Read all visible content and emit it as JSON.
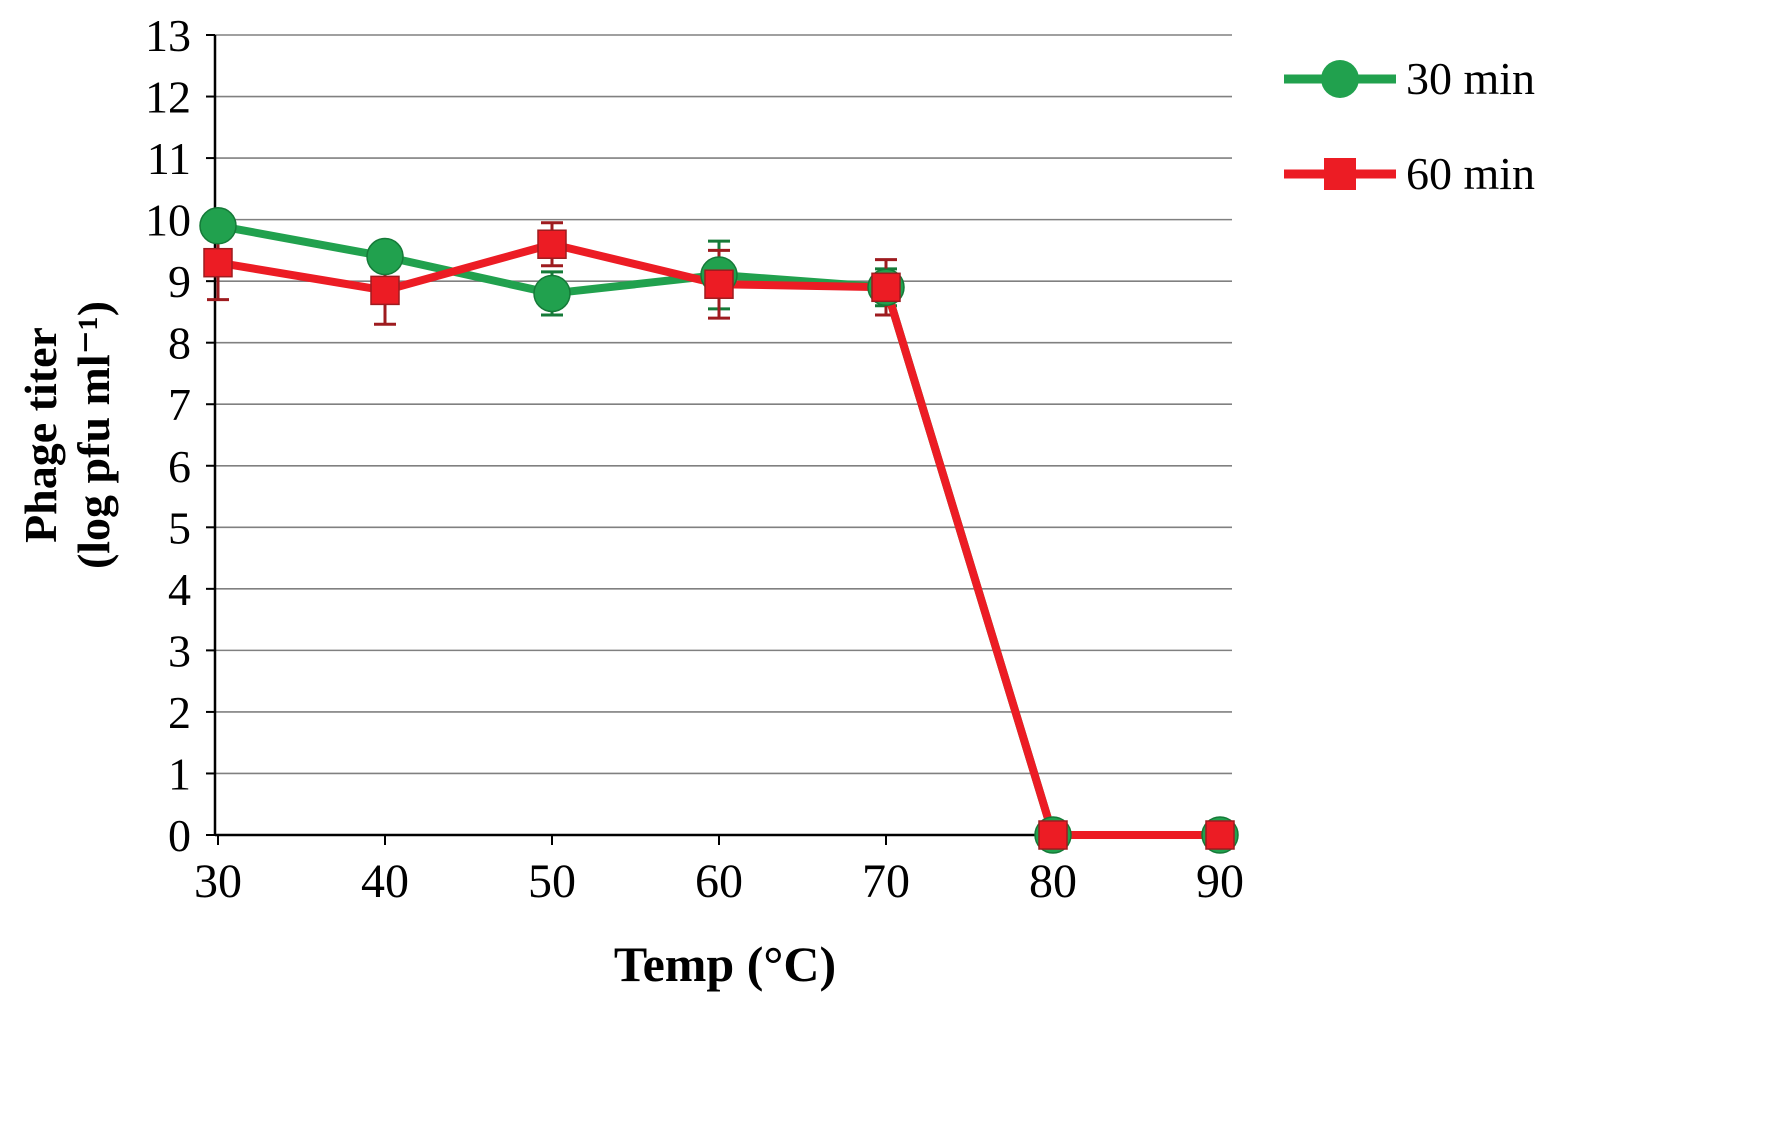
{
  "chart_data": {
    "type": "line",
    "title": "",
    "xlabel": "Temp (°C)",
    "ylabel": "Phage titer (log pfu ml⁻¹)",
    "ylabel_lines": [
      "Phage titer",
      "(log pfu ml⁻¹)"
    ],
    "x_ticks": [
      "30",
      "40",
      "50",
      "60",
      "70",
      "80",
      "90"
    ],
    "categories": [
      30,
      40,
      50,
      60,
      70,
      80,
      90
    ],
    "ylim": [
      0,
      13
    ],
    "ytick_step": 1,
    "grid": "horizontal",
    "gridline_color": "#808080",
    "axis_color": "#000000",
    "legend_position": "top-right",
    "series": [
      {
        "name": "30 min",
        "color": "#21A14E",
        "err_color": "#157A38",
        "marker": "circle",
        "values": [
          9.9,
          9.4,
          8.8,
          9.1,
          8.9,
          0,
          0
        ],
        "errors": [
          0.2,
          0.2,
          0.35,
          0.55,
          0.3,
          0,
          0
        ]
      },
      {
        "name": "60 min",
        "color": "#EC1C24",
        "err_color": "#9E1B1F",
        "marker": "square",
        "values": [
          9.3,
          8.85,
          9.6,
          8.95,
          8.9,
          0,
          0
        ],
        "errors": [
          0.6,
          0.55,
          0.35,
          0.55,
          0.45,
          0,
          0
        ]
      }
    ]
  }
}
